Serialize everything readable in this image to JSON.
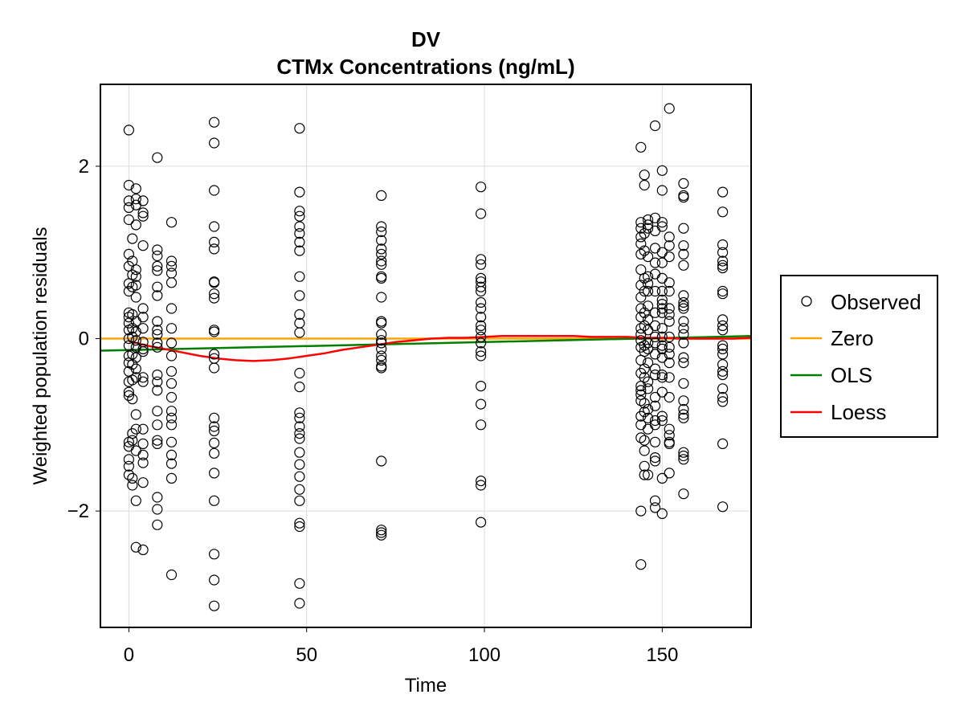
{
  "chart_data": {
    "type": "scatter",
    "title": "DV",
    "subtitle": "CTMx Concentrations (ng/mL)",
    "xlabel": "Time",
    "ylabel": "Weighted population residuals",
    "xlim": [
      -8,
      175
    ],
    "ylim": [
      -3.35,
      2.95
    ],
    "xticks": [
      0,
      50,
      100,
      150
    ],
    "yticks": [
      -2,
      0,
      2
    ],
    "grid": true,
    "legend_placement": "right",
    "legend": [
      {
        "label": "Observed",
        "kind": "marker",
        "color": "#000000"
      },
      {
        "label": "Zero",
        "kind": "line",
        "color": "#FFA500"
      },
      {
        "label": "OLS",
        "kind": "line",
        "color": "#008000"
      },
      {
        "label": "Loess",
        "kind": "line",
        "color": "#FF0000"
      }
    ],
    "observed_groups": [
      {
        "x": 0,
        "y": [
          2.42,
          1.78,
          1.6,
          1.52,
          1.38,
          0.98,
          0.84,
          0.64,
          0.55,
          0.3,
          0.25,
          0.18,
          0.1,
          0.0,
          -0.08,
          -0.2,
          -0.28,
          -0.38,
          -0.5,
          -0.62,
          -0.66,
          -1.2,
          -1.25,
          -1.4,
          -1.48,
          -1.58
        ]
      },
      {
        "x": 1,
        "y": [
          1.16,
          0.9,
          0.74,
          0.6,
          0.28,
          0.12,
          0.02,
          -0.18,
          -0.3,
          -0.48,
          -0.7,
          -1.1,
          -1.18,
          -1.62,
          -1.7
        ]
      },
      {
        "x": 2,
        "y": [
          1.74,
          1.62,
          1.55,
          1.32,
          0.8,
          0.72,
          0.62,
          0.48,
          0.2,
          0.08,
          -0.02,
          -0.1,
          -0.22,
          -0.35,
          -0.45,
          -0.88,
          -1.05,
          -1.3,
          -1.88,
          -2.42
        ]
      },
      {
        "x": 4,
        "y": [
          1.6,
          1.46,
          1.42,
          1.08,
          0.35,
          0.25,
          0.12,
          -0.04,
          -0.12,
          -0.15,
          -0.45,
          -0.5,
          -1.05,
          -1.22,
          -1.35,
          -1.44,
          -1.67,
          -2.45
        ]
      },
      {
        "x": 8,
        "y": [
          2.1,
          1.03,
          0.96,
          0.84,
          0.79,
          0.6,
          0.5,
          0.2,
          0.1,
          0.05,
          -0.05,
          -0.1,
          -0.42,
          -0.5,
          -0.6,
          -0.84,
          -1.0,
          -1.18,
          -1.22,
          -1.84,
          -1.98,
          -2.16
        ]
      },
      {
        "x": 12,
        "y": [
          1.35,
          0.9,
          0.84,
          0.76,
          0.65,
          0.35,
          0.12,
          -0.05,
          -0.2,
          -0.38,
          -0.52,
          -0.68,
          -0.84,
          -0.92,
          -1.0,
          -1.2,
          -1.35,
          -1.45,
          -1.62,
          -2.74
        ]
      },
      {
        "x": 24,
        "y": [
          2.51,
          2.27,
          1.72,
          1.3,
          1.12,
          1.04,
          0.66,
          0.65,
          0.52,
          0.47,
          0.1,
          0.08,
          -0.18,
          -0.23,
          -0.34,
          -0.92,
          -1.02,
          -1.07,
          -1.21,
          -1.33,
          -1.56,
          -1.88,
          -2.5,
          -2.8,
          -3.1
        ]
      },
      {
        "x": 48,
        "y": [
          2.44,
          1.7,
          1.48,
          1.42,
          1.3,
          1.22,
          1.12,
          1.02,
          0.72,
          0.5,
          0.28,
          0.18,
          0.07,
          -0.4,
          -0.56,
          -0.86,
          -0.92,
          -1.02,
          -1.1,
          -1.16,
          -1.32,
          -1.46,
          -1.6,
          -1.75,
          -1.88,
          -2.14,
          -2.18,
          -2.84,
          -3.07
        ]
      },
      {
        "x": 71,
        "y": [
          1.66,
          1.3,
          1.24,
          1.14,
          1.04,
          0.98,
          0.9,
          0.86,
          0.72,
          0.7,
          0.48,
          0.2,
          0.18,
          0.05,
          -0.02,
          -0.05,
          -0.12,
          -0.2,
          -0.25,
          -0.32,
          -0.34,
          -1.42,
          -2.22,
          -2.25,
          -2.28
        ]
      },
      {
        "x": 99,
        "y": [
          1.76,
          1.45,
          0.92,
          0.86,
          0.7,
          0.66,
          0.6,
          0.55,
          0.42,
          0.35,
          0.25,
          0.15,
          0.1,
          0.02,
          -0.05,
          -0.15,
          -0.2,
          -0.55,
          -0.76,
          -1.0,
          -1.65,
          -1.7,
          -2.13
        ]
      },
      {
        "x": 144,
        "y": [
          2.22,
          1.35,
          1.28,
          1.18,
          1.1,
          0.98,
          0.8,
          0.62,
          0.48,
          0.35,
          0.25,
          0.12,
          0.05,
          -0.02,
          -0.1,
          -0.25,
          -0.4,
          -0.55,
          -0.6,
          -0.65,
          -0.72,
          -0.9,
          -1.0,
          -1.15,
          -2.0,
          -2.62
        ]
      },
      {
        "x": 145,
        "y": [
          1.9,
          1.78,
          1.22,
          1.02,
          0.7,
          0.55,
          0.3,
          0.15,
          -0.08,
          -0.15,
          -0.35,
          -0.45,
          -0.75,
          -0.85,
          -1.18,
          -1.3,
          -1.48,
          -1.58
        ]
      },
      {
        "x": 146,
        "y": [
          1.38,
          1.32,
          1.28,
          0.95,
          0.72,
          0.64,
          0.55,
          0.38,
          0.22,
          0.1,
          -0.05,
          -0.12,
          -0.28,
          -0.5,
          -0.58,
          -0.82,
          -0.92,
          -1.05,
          -1.58
        ]
      },
      {
        "x": 148,
        "y": [
          2.47,
          1.4,
          1.25,
          1.05,
          0.88,
          0.75,
          0.55,
          0.3,
          0.15,
          0.02,
          -0.05,
          -0.18,
          -0.35,
          -0.42,
          -0.68,
          -0.78,
          -0.95,
          -1.0,
          -1.2,
          -1.38,
          -1.42,
          -1.88,
          -1.96
        ]
      },
      {
        "x": 150,
        "y": [
          1.95,
          1.72,
          1.35,
          1.3,
          1.0,
          0.88,
          0.7,
          0.55,
          0.45,
          0.4,
          0.35,
          0.3,
          0.12,
          0.02,
          -0.08,
          -0.12,
          -0.22,
          -0.42,
          -0.45,
          -0.62,
          -0.9,
          -0.95,
          -1.62,
          -2.03
        ]
      },
      {
        "x": 152,
        "y": [
          2.67,
          1.18,
          1.08,
          0.95,
          0.65,
          0.55,
          0.35,
          0.28,
          0.2,
          0.02,
          -0.1,
          -0.18,
          -0.28,
          -0.45,
          -0.68,
          -1.05,
          -1.12,
          -1.2,
          -1.22,
          -1.56
        ]
      },
      {
        "x": 156,
        "y": [
          1.8,
          1.66,
          1.64,
          1.28,
          1.08,
          0.98,
          0.85,
          0.5,
          0.42,
          0.38,
          0.35,
          0.2,
          0.12,
          0.05,
          -0.05,
          -0.22,
          -0.28,
          -0.52,
          -0.72,
          -0.82,
          -0.88,
          -0.92,
          -1.32,
          -1.36,
          -1.4,
          -1.8
        ]
      },
      {
        "x": 167,
        "y": [
          1.7,
          1.47,
          1.09,
          1.0,
          0.9,
          0.85,
          0.82,
          0.55,
          0.52,
          0.22,
          0.15,
          0.1,
          -0.08,
          -0.12,
          -0.18,
          -0.3,
          -0.38,
          -0.42,
          -0.58,
          -0.68,
          -0.73,
          -1.22,
          -1.95
        ]
      }
    ],
    "zero_line": {
      "x": [
        -8,
        175
      ],
      "y": [
        0,
        0
      ]
    },
    "ols_line": {
      "x": [
        -8,
        175
      ],
      "y": [
        -0.14,
        0.03
      ]
    },
    "loess_line": {
      "x": [
        0,
        5,
        10,
        15,
        20,
        25,
        30,
        35,
        40,
        45,
        50,
        55,
        60,
        65,
        70,
        75,
        80,
        85,
        90,
        95,
        100,
        105,
        110,
        115,
        120,
        125,
        130,
        135,
        140,
        145,
        150,
        155,
        160,
        165,
        170,
        175
      ],
      "y": [
        -0.03,
        -0.08,
        -0.12,
        -0.16,
        -0.2,
        -0.23,
        -0.25,
        -0.26,
        -0.25,
        -0.23,
        -0.2,
        -0.17,
        -0.13,
        -0.1,
        -0.07,
        -0.04,
        -0.02,
        0.0,
        0.01,
        0.01,
        0.02,
        0.03,
        0.03,
        0.03,
        0.03,
        0.03,
        0.02,
        0.02,
        0.02,
        0.01,
        0.01,
        0.0,
        0.0,
        0.0,
        0.0,
        0.01
      ]
    }
  }
}
